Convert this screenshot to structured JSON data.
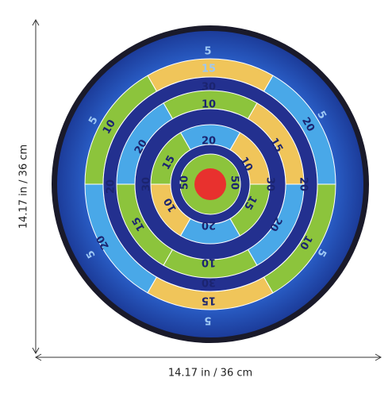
{
  "dimensions": {
    "height": "14.17 in / 36 cm",
    "width": "14.17 in / 36 cm"
  },
  "board": {
    "labels": [
      "5",
      "15",
      "30",
      "10",
      "20",
      "5",
      "10",
      "20",
      "15",
      "5",
      "20",
      "15",
      "10",
      "20",
      "30",
      "50",
      "50",
      "30",
      "20",
      "20",
      "5",
      "15",
      "10",
      "15",
      "20",
      "10",
      "5",
      "20",
      "10",
      "30",
      "15",
      "5"
    ]
  }
}
